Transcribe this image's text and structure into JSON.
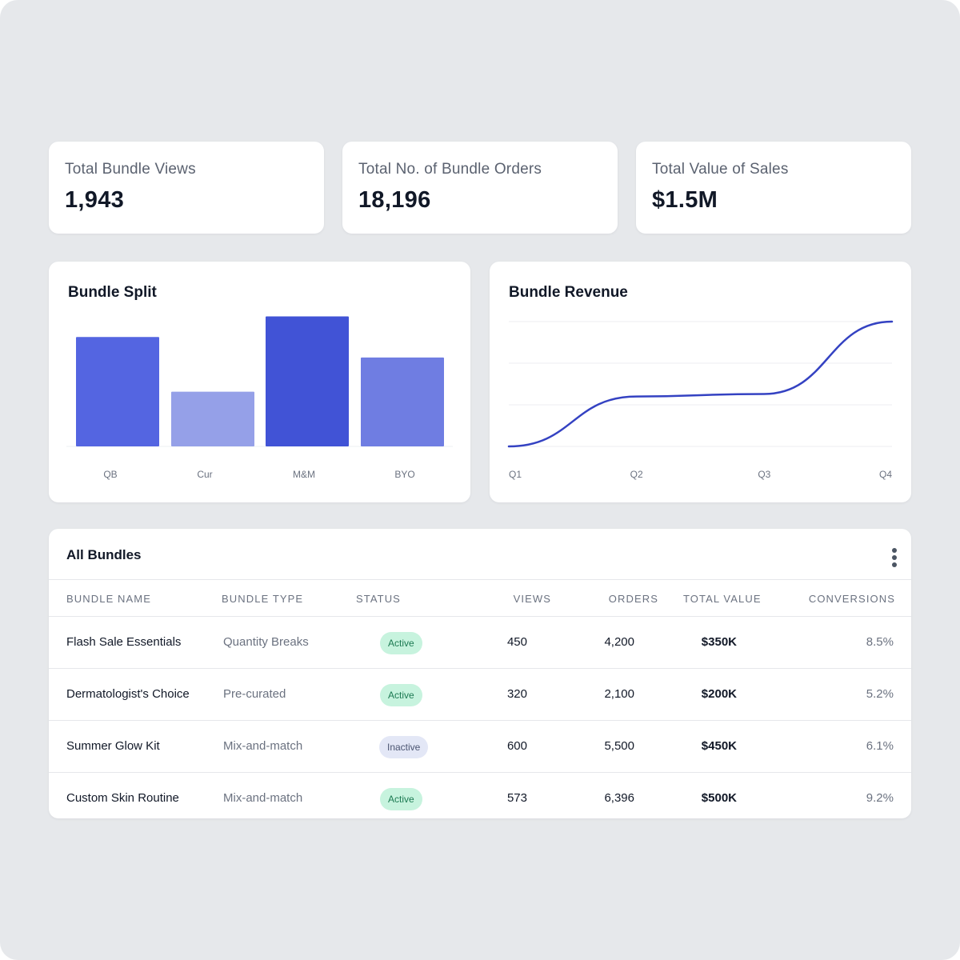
{
  "colors": {
    "background": "#e6e8eb",
    "card": "#ffffff",
    "accent": "#3f51d6",
    "status_active_bg": "#c7f3de",
    "status_inactive_bg": "#e3e7f6"
  },
  "kpis": [
    {
      "title": "Total Bundle Views",
      "value": "1,943"
    },
    {
      "title": "Total No. of Bundle Orders",
      "value": "18,196"
    },
    {
      "title": "Total Value of Sales",
      "value": "$1.5M"
    }
  ],
  "bundle_split": {
    "title": "Bundle Split",
    "bar_colors": [
      "#5465e1",
      "#95a0e8",
      "#4153d6",
      "#6f7de2"
    ]
  },
  "bundle_revenue": {
    "title": "Bundle Revenue",
    "line_color": "#3442c2"
  },
  "chart_data": [
    {
      "type": "bar",
      "title": "Bundle Split",
      "categories": [
        "QB",
        "Cur",
        "M&M",
        "BYO"
      ],
      "values": [
        80,
        40,
        95,
        65
      ],
      "ylim": [
        0,
        100
      ],
      "grid": false,
      "legend": "none"
    },
    {
      "type": "line",
      "title": "Bundle Revenue",
      "x": [
        "Q1",
        "Q2",
        "Q3",
        "Q4"
      ],
      "series": [
        {
          "values": [
            0,
            40,
            42,
            100
          ]
        }
      ],
      "ylim": [
        0,
        100
      ],
      "grid": true,
      "legend": "none"
    }
  ],
  "table": {
    "title": "All Bundles",
    "columns": [
      "BUNDLE NAME",
      "BUNDLE TYPE",
      "STATUS",
      "VIEWS",
      "ORDERS",
      "TOTAL VALUE",
      "CONVERSIONS"
    ],
    "rows": [
      {
        "name": "Flash Sale Essentials",
        "type": "Quantity Breaks",
        "status": "Active",
        "views": "450",
        "orders": "4,200",
        "value": "$350K",
        "conversions": "8.5%"
      },
      {
        "name": "Dermatologist's Choice",
        "type": "Pre-curated",
        "status": "Active",
        "views": "320",
        "orders": "2,100",
        "value": "$200K",
        "conversions": "5.2%"
      },
      {
        "name": "Summer Glow Kit",
        "type": "Mix-and-match",
        "status": "Inactive",
        "views": "600",
        "orders": "5,500",
        "value": "$450K",
        "conversions": "6.1%"
      },
      {
        "name": "Custom Skin Routine",
        "type": "Mix-and-match",
        "status": "Active",
        "views": "573",
        "orders": "6,396",
        "value": "$500K",
        "conversions": "9.2%"
      }
    ]
  },
  "icons": {
    "table_menu": "more-vertical-icon"
  }
}
